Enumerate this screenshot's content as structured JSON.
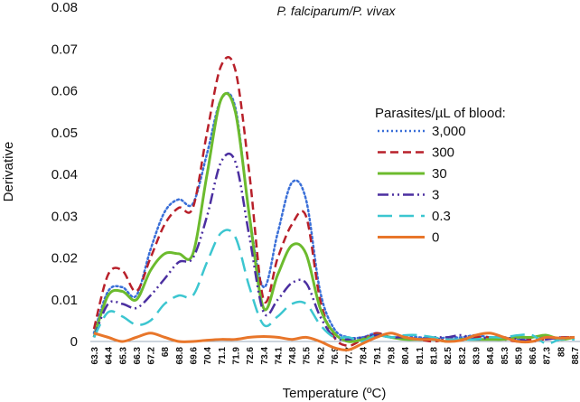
{
  "chart_data": {
    "type": "line",
    "title": "P. falciparum/P. vivax",
    "xlabel": "Temperature (ºC)",
    "ylabel": "Derivative",
    "ylim": [
      0,
      0.08
    ],
    "yticks": [
      "0",
      "0.01",
      "0.02",
      "0.03",
      "0.04",
      "0.05",
      "0.06",
      "0.07",
      "0.08"
    ],
    "grid": false,
    "legend_title": "Parasites/µL of blood:",
    "legend_position": "right",
    "x": [
      "63.3",
      "64.4",
      "65.3",
      "66.3",
      "67.2",
      "68",
      "68.8",
      "69.6",
      "70.4",
      "71.1",
      "71.9",
      "72.6",
      "73.4",
      "74.1",
      "74.8",
      "75.5",
      "76.2",
      "76.9",
      "77.7",
      "78.4",
      "79.1",
      "79.8",
      "80.4",
      "81.1",
      "81.8",
      "82.5",
      "83.2",
      "83.9",
      "84.6",
      "85.3",
      "85.9",
      "86.6",
      "87.3",
      "88",
      "88.7"
    ],
    "series": [
      {
        "name": "3,000",
        "color": "#3a6fd8",
        "dash": "dot",
        "values": [
          0.002,
          0.012,
          0.013,
          0.011,
          0.022,
          0.031,
          0.034,
          0.033,
          0.045,
          0.058,
          0.056,
          0.03,
          0.013,
          0.026,
          0.038,
          0.034,
          0.012,
          0.003,
          0.001,
          0.001,
          0.002,
          0.001,
          0.001,
          0.001,
          0.0005,
          0.001,
          0.001,
          0.0015,
          0.001,
          0.001,
          0.0005,
          0.001,
          0.001,
          0.0005,
          0.001
        ]
      },
      {
        "name": "300",
        "color": "#b8202a",
        "dash": "dash",
        "values": [
          0.003,
          0.016,
          0.017,
          0.012,
          0.02,
          0.028,
          0.032,
          0.032,
          0.05,
          0.066,
          0.065,
          0.04,
          0.01,
          0.02,
          0.028,
          0.03,
          0.01,
          0.001,
          -0.001,
          0.0005,
          0.002,
          0.001,
          0.001,
          0.0005,
          0,
          0.0005,
          0.0005,
          0.001,
          0.001,
          0.0005,
          0,
          0.0005,
          0.0005,
          0.001,
          0.001
        ]
      },
      {
        "name": "30",
        "color": "#6cbb2e",
        "dash": "solid",
        "values": [
          0.001,
          0.011,
          0.012,
          0.01,
          0.017,
          0.021,
          0.021,
          0.021,
          0.04,
          0.058,
          0.055,
          0.03,
          0.008,
          0.016,
          0.023,
          0.021,
          0.008,
          0.002,
          0,
          0.0005,
          0.0015,
          0.001,
          0.0005,
          0.0005,
          0.0005,
          0,
          0.0005,
          0.0005,
          0.0005,
          0.0005,
          0.001,
          0.001,
          0.0015,
          0.0005,
          0.001
        ]
      },
      {
        "name": "3",
        "color": "#4b2fa0",
        "dash": "dashdot",
        "values": [
          0.001,
          0.009,
          0.009,
          0.008,
          0.011,
          0.015,
          0.019,
          0.02,
          0.03,
          0.043,
          0.043,
          0.025,
          0.007,
          0.01,
          0.014,
          0.014,
          0.006,
          0.001,
          0.0005,
          0.001,
          0.0015,
          0.001,
          0.001,
          0.0005,
          0.001,
          0.001,
          0.0015,
          0.0005,
          0.001,
          0.001,
          0.0005,
          0,
          0.0005,
          0.001,
          0.001
        ]
      },
      {
        "name": "0.3",
        "color": "#3cc6d0",
        "dash": "longdash",
        "values": [
          0.001,
          0.007,
          0.006,
          0.004,
          0.005,
          0.009,
          0.011,
          0.011,
          0.019,
          0.026,
          0.025,
          0.013,
          0.004,
          0.006,
          0.009,
          0.009,
          0.004,
          0.001,
          0.001,
          0,
          0.0015,
          0.001,
          0.0015,
          0.0015,
          0.001,
          0.0005,
          0.0005,
          0.0005,
          0.001,
          0.001,
          0.0015,
          0.0015,
          -0.0005,
          0.0005,
          0.0005
        ]
      },
      {
        "name": "0",
        "color": "#e8762a",
        "dash": "solid",
        "values": [
          0.002,
          0.001,
          0,
          0.001,
          0.002,
          0.001,
          0,
          0,
          0.0003,
          0.0005,
          0.0005,
          0.001,
          0.0012,
          0.001,
          0.0005,
          0.001,
          0,
          -0.0015,
          -0.002,
          -0.0005,
          0.001,
          0.002,
          0.001,
          0.0005,
          0.0005,
          0,
          0.0003,
          0.0015,
          0.002,
          0.001,
          0,
          0,
          0.001,
          0.0008,
          0.001
        ]
      }
    ]
  }
}
